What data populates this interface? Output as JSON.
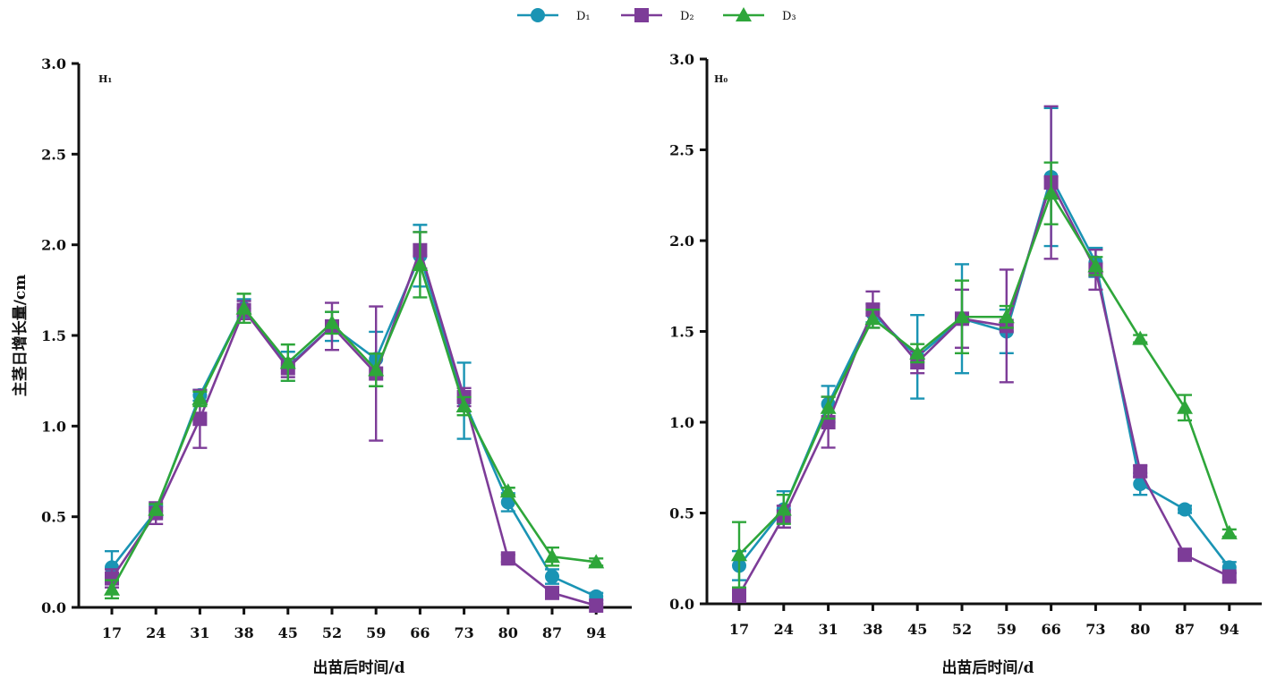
{
  "legend": [
    {
      "label": "D₁",
      "color": "#1a94b4",
      "marker": "circle"
    },
    {
      "label": "D₂",
      "color": "#7d3c98",
      "marker": "square"
    },
    {
      "label": "D₃",
      "color": "#2ea63a",
      "marker": "triangle"
    }
  ],
  "chart_data": [
    {
      "type": "line",
      "panel_label": "H₁",
      "xlabel": "出苗后时间/d",
      "ylabel": "主茎日增长量/cm",
      "categories": [
        "17",
        "24",
        "31",
        "38",
        "45",
        "52",
        "59",
        "66",
        "73",
        "80",
        "87",
        "94"
      ],
      "ylim": [
        0,
        3.0
      ],
      "yticks": [
        "0.0",
        "0.5",
        "1.0",
        "1.5",
        "2.0",
        "2.5",
        "3.0"
      ],
      "grid": false,
      "legend_position": "top-center",
      "series": [
        {
          "name": "D₁",
          "color": "#1a94b4",
          "marker": "circle",
          "values": [
            0.22,
            0.53,
            1.17,
            1.65,
            1.33,
            1.55,
            1.37,
            1.94,
            1.14,
            0.58,
            0.17,
            0.06
          ],
          "errors": [
            0.09,
            0.03,
            0.03,
            0.05,
            0.08,
            0.08,
            0.15,
            0.17,
            0.21,
            0.05,
            0.04,
            0.02
          ]
        },
        {
          "name": "D₂",
          "color": "#7d3c98",
          "marker": "square",
          "values": [
            0.16,
            0.52,
            1.04,
            1.64,
            1.32,
            1.55,
            1.29,
            1.97,
            1.16,
            0.27,
            0.08,
            0.01
          ],
          "errors": [
            0.05,
            0.06,
            0.16,
            0.05,
            0.05,
            0.13,
            0.37,
            0.1,
            0.05,
            0.02,
            0.02,
            0.01
          ]
        },
        {
          "name": "D₃",
          "color": "#2ea63a",
          "marker": "triangle",
          "values": [
            0.1,
            0.54,
            1.15,
            1.65,
            1.35,
            1.57,
            1.31,
            1.89,
            1.11,
            0.64,
            0.28,
            0.25
          ],
          "errors": [
            0.05,
            0.03,
            0.04,
            0.08,
            0.1,
            0.06,
            0.09,
            0.18,
            0.05,
            0.02,
            0.05,
            0.02
          ]
        }
      ]
    },
    {
      "type": "line",
      "panel_label": "H₀",
      "xlabel": "出苗后时间/d",
      "ylabel": "",
      "categories": [
        "17",
        "24",
        "31",
        "38",
        "45",
        "52",
        "59",
        "66",
        "73",
        "80",
        "87",
        "94"
      ],
      "ylim": [
        0,
        3.0
      ],
      "yticks": [
        "0.0",
        "0.5",
        "1.0",
        "1.5",
        "2.0",
        "2.5",
        "3.0"
      ],
      "grid": false,
      "series": [
        {
          "name": "D₁",
          "color": "#1a94b4",
          "marker": "circle",
          "values": [
            0.21,
            0.52,
            1.1,
            1.6,
            1.36,
            1.57,
            1.5,
            2.35,
            1.88,
            0.66,
            0.52,
            0.2
          ],
          "errors": [
            0.08,
            0.1,
            0.1,
            0.05,
            0.23,
            0.3,
            0.12,
            0.38,
            0.08,
            0.06,
            0.02,
            0.03
          ]
        },
        {
          "name": "D₂",
          "color": "#7d3c98",
          "marker": "square",
          "values": [
            0.05,
            0.48,
            1.0,
            1.62,
            1.33,
            1.57,
            1.53,
            2.32,
            1.84,
            0.73,
            0.27,
            0.15
          ],
          "errors": [
            0.04,
            0.06,
            0.14,
            0.1,
            0.06,
            0.16,
            0.31,
            0.42,
            0.11,
            0.03,
            0.02,
            0.02
          ]
        },
        {
          "name": "D₃",
          "color": "#2ea63a",
          "marker": "triangle",
          "values": [
            0.27,
            0.52,
            1.08,
            1.57,
            1.38,
            1.58,
            1.58,
            2.26,
            1.86,
            1.46,
            1.08,
            0.39
          ],
          "errors": [
            0.18,
            0.08,
            0.06,
            0.05,
            0.05,
            0.2,
            0.06,
            0.17,
            0.05,
            0.02,
            0.07,
            0.02
          ]
        }
      ]
    }
  ]
}
